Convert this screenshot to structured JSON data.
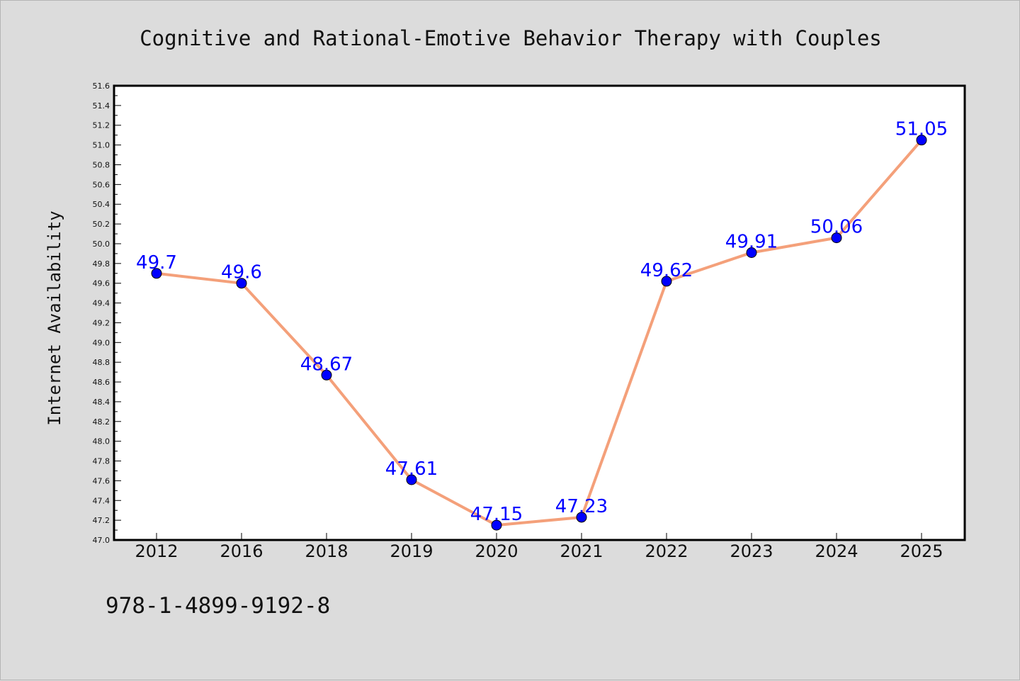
{
  "chart_data": {
    "type": "line",
    "title": "Cognitive and Rational-Emotive Behavior Therapy with Couples",
    "xlabel": "",
    "ylabel": "Internet Availability",
    "categories": [
      "2012",
      "2016",
      "2018",
      "2019",
      "2020",
      "2021",
      "2022",
      "2023",
      "2024",
      "2025"
    ],
    "series": [
      {
        "values": [
          49.7,
          49.6,
          48.67,
          47.61,
          47.15,
          47.23,
          49.62,
          49.91,
          50.06,
          51.05
        ],
        "labels": [
          "49.7",
          "49.6",
          "48.67",
          "47.61",
          "47.15",
          "47.23",
          "49.62",
          "49.91",
          "50.06",
          "51.05"
        ],
        "line_color": "#f4a07a",
        "marker_color": "#0000ff"
      }
    ],
    "ylim": [
      47.0,
      51.6
    ],
    "yticks": [
      "47.0",
      "47.2",
      "47.4",
      "47.6",
      "47.8",
      "48.0",
      "48.2",
      "48.4",
      "48.6",
      "48.8",
      "49.0",
      "49.2",
      "49.4",
      "49.6",
      "49.8",
      "50.0",
      "50.2",
      "50.4",
      "50.6",
      "50.8",
      "51.0",
      "51.2",
      "51.4",
      "51.6"
    ],
    "grid": false,
    "legend": "none",
    "footnote": "978-1-4899-9192-8"
  },
  "colors": {
    "background": "#dcdcdc",
    "plot_area": "#ffffff",
    "line": "#f4a07a",
    "marker": "#0000ff",
    "data_label": "#0000ff"
  }
}
